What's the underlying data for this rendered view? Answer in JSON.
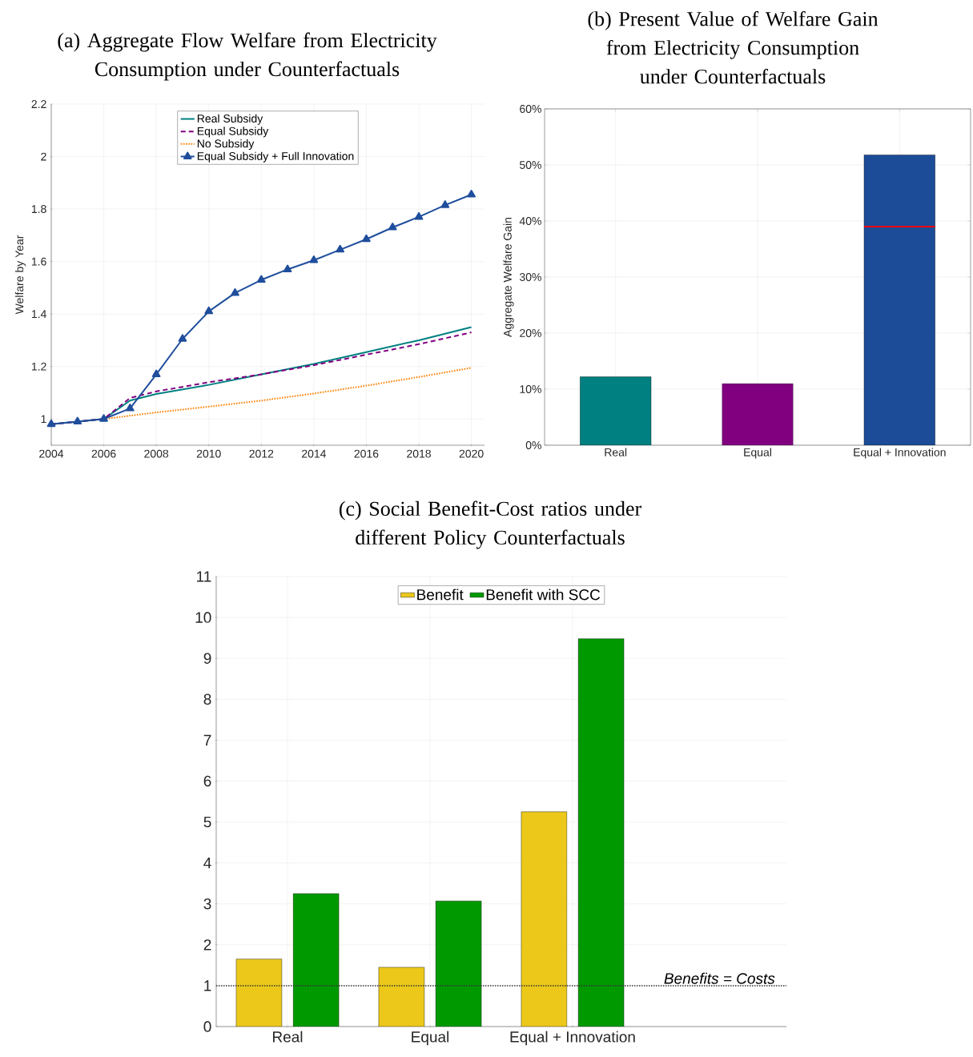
{
  "chart_data": [
    {
      "type": "line",
      "title": "(a) Aggregate Flow Welfare from Electricity Consumption under Counterfactuals",
      "ylabel": "Welfare by Year",
      "xlim": [
        2004,
        2020.5
      ],
      "ylim": [
        0.9,
        2.2
      ],
      "xticks": [
        2004,
        2006,
        2008,
        2010,
        2012,
        2014,
        2016,
        2018,
        2020
      ],
      "yticks": [
        1,
        1.2,
        1.4,
        1.6,
        1.8,
        2,
        2.2
      ],
      "grid": true,
      "legend": "top",
      "series": [
        {
          "name": "Real Subsidy",
          "color": "#008080",
          "line_style": "solid",
          "marker": "none",
          "x": [
            2004,
            2005,
            2006,
            2007,
            2008,
            2010,
            2012,
            2014,
            2016,
            2018,
            2020
          ],
          "values": [
            0.98,
            0.99,
            1.0,
            1.07,
            1.095,
            1.13,
            1.17,
            1.21,
            1.255,
            1.3,
            1.35
          ]
        },
        {
          "name": "Equal Subsidy",
          "color": "#800080",
          "line_style": "dashed",
          "marker": "none",
          "x": [
            2004,
            2005,
            2006,
            2007,
            2008,
            2010,
            2012,
            2014,
            2016,
            2018,
            2020
          ],
          "values": [
            0.98,
            0.99,
            1.0,
            1.08,
            1.105,
            1.14,
            1.17,
            1.205,
            1.245,
            1.285,
            1.33
          ]
        },
        {
          "name": "No Subsidy",
          "color": "#ff8000",
          "line_style": "dotted",
          "marker": "none",
          "x": [
            2006,
            2008,
            2010,
            2012,
            2014,
            2016,
            2018,
            2020
          ],
          "values": [
            1.0,
            1.025,
            1.047,
            1.07,
            1.097,
            1.127,
            1.16,
            1.195
          ]
        },
        {
          "name": "Equal Subsidy + Full Innovation",
          "color": "#1f4e9c",
          "line_style": "solid",
          "marker": "triangle",
          "x": [
            2004,
            2005,
            2006,
            2007,
            2008,
            2009,
            2010,
            2011,
            2012,
            2013,
            2014,
            2015,
            2016,
            2017,
            2018,
            2019,
            2020
          ],
          "values": [
            0.98,
            0.99,
            1.0,
            1.04,
            1.17,
            1.305,
            1.41,
            1.48,
            1.53,
            1.57,
            1.605,
            1.645,
            1.685,
            1.73,
            1.77,
            1.815,
            1.855
          ]
        }
      ]
    },
    {
      "type": "bar",
      "title": "(b) Present Value of Welfare Gain from Electricity Consumption under Counterfactuals",
      "ylabel": "Aggregate Welfare Gain",
      "categories": [
        "Real",
        "Equal",
        "Equal + Innovation"
      ],
      "values": [
        12.2,
        11,
        51.8
      ],
      "colors": [
        "#008080",
        "#800080",
        "#1c4c98"
      ],
      "ylim": [
        0,
        60
      ],
      "yticks": [
        {
          "value": 0,
          "label": "0%"
        },
        {
          "value": 10,
          "label": "10%"
        },
        {
          "value": 20,
          "label": "20%"
        },
        {
          "value": 30,
          "label": "30%"
        },
        {
          "value": 40,
          "label": "40%"
        },
        {
          "value": 50,
          "label": "50%"
        },
        {
          "value": 60,
          "label": "60%"
        }
      ],
      "grid": true,
      "ref_lines": [
        {
          "axis": "y",
          "value": 39,
          "color": "#ff0000"
        }
      ]
    },
    {
      "type": "bar",
      "title": "(c) Social Benefit-Cost ratios under different Policy Counterfactuals",
      "categories": [
        "Real",
        "Equal",
        "Equal + Innovation"
      ],
      "ylim": [
        0,
        11
      ],
      "yticks": [
        0,
        1,
        2,
        3,
        4,
        5,
        6,
        7,
        8,
        9,
        10,
        11
      ],
      "grid": true,
      "legend": "top",
      "series": [
        {
          "name": "Benefit",
          "color": "#ebc81a",
          "values": [
            1.65,
            1.45,
            5.25
          ]
        },
        {
          "name": "Benefit with SCC",
          "color": "#009900",
          "values": [
            3.25,
            3.07,
            9.48
          ]
        }
      ],
      "ref_lines": [
        {
          "axis": "y",
          "value": 1,
          "label": "Benefits = Costs",
          "line_style": "dotted",
          "color": "#333333"
        }
      ]
    }
  ]
}
